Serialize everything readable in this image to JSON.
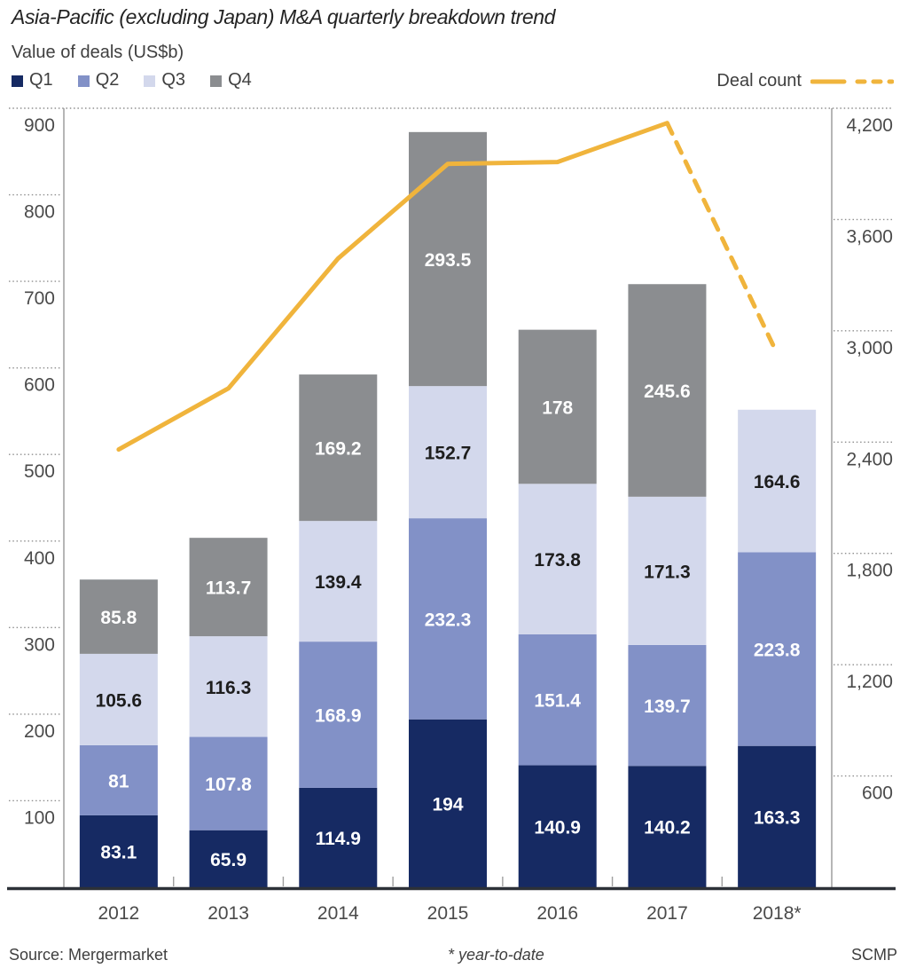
{
  "chart_data": {
    "type": "bar",
    "variant": "stacked-column-with-line",
    "title": "Asia-Pacific (excluding Japan) M&A quarterly breakdown trend",
    "value_axis_label": "Value of deals (US$b)",
    "categories": [
      "2012",
      "2013",
      "2014",
      "2015",
      "2016",
      "2017",
      "2018*"
    ],
    "series": [
      {
        "name": "Q1",
        "color": "#162a63",
        "label_color": "#ffffff",
        "values": [
          83.1,
          65.9,
          114.9,
          194,
          140.9,
          140.2,
          163.3
        ]
      },
      {
        "name": "Q2",
        "color": "#8291c7",
        "label_color": "#ffffff",
        "values": [
          81,
          107.8,
          168.9,
          232.3,
          151.4,
          139.7,
          223.8
        ]
      },
      {
        "name": "Q3",
        "color": "#d3d8ec",
        "label_color": "#1d1d1d",
        "values": [
          105.6,
          116.3,
          139.4,
          152.7,
          173.8,
          171.3,
          164.6
        ]
      },
      {
        "name": "Q4",
        "color": "#8b8d90",
        "label_color": "#ffffff",
        "values": [
          85.8,
          113.7,
          169.2,
          293.5,
          178,
          245.6,
          null
        ]
      }
    ],
    "line_series": {
      "name": "Deal count",
      "color": "#f0b43c",
      "axis": "right",
      "values": [
        2360,
        2690,
        3390,
        3900,
        3910,
        4120,
        2880
      ],
      "dashed_from_index": 5
    },
    "axes": {
      "left": {
        "min": 0,
        "max": 900,
        "ticks": [
          100,
          200,
          300,
          400,
          500,
          600,
          700,
          800,
          900
        ]
      },
      "right": {
        "min": 0,
        "max": 4200,
        "ticks": [
          600,
          1200,
          1800,
          2400,
          3000,
          3600,
          4200
        ]
      }
    },
    "legend_position": "top",
    "grid": "single dotted rule at top; dotted tick stubs outside both axes"
  },
  "footer": {
    "source": "Source: Mergermarket",
    "note": "* year-to-date",
    "credit": "SCMP"
  },
  "colors": {
    "background": "#ffffff",
    "title": "#242424",
    "text": "#3f3f3f",
    "tick_label": "#4a4a4a",
    "axis_line": "#9e9e9e",
    "baseline": "#2d3138",
    "dotted": "#8f8f8f"
  }
}
